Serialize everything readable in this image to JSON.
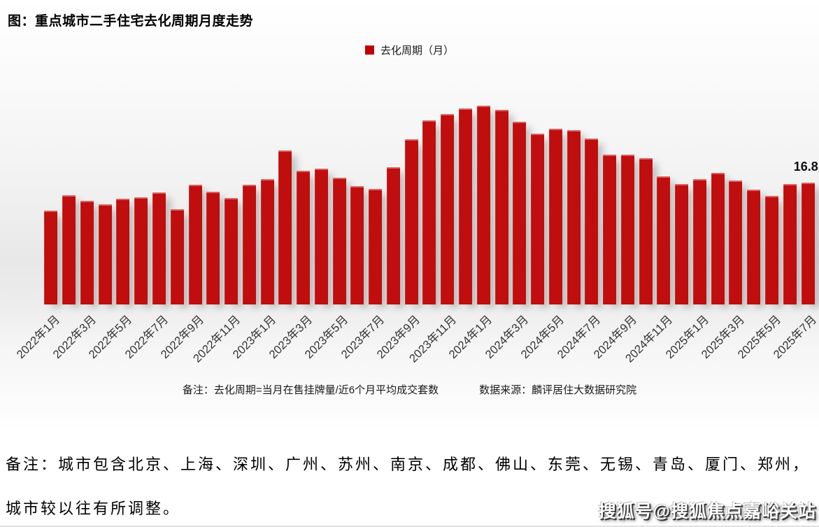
{
  "header": {
    "title": "图：重点城市二手住宅去化周期月度走势"
  },
  "legend": {
    "label": "去化周期（月）",
    "marker_color": "#c00000"
  },
  "chart_data": {
    "type": "bar",
    "title": "重点城市二手住宅去化周期月度走势",
    "xlabel": "",
    "ylabel": "去化周期（月）",
    "legend_position": "top-center",
    "grid": false,
    "axis_lines": false,
    "bar_color": "#c00d0d",
    "ylim": [
      0,
      36.6
    ],
    "tick_step": 2,
    "categories": [
      "2022年1月",
      "2022年2月",
      "2022年3月",
      "2022年4月",
      "2022年5月",
      "2022年6月",
      "2022年7月",
      "2022年8月",
      "2022年9月",
      "2022年10月",
      "2022年11月",
      "2022年12月",
      "2023年1月",
      "2023年2月",
      "2023年3月",
      "2023年4月",
      "2023年5月",
      "2023年6月",
      "2023年7月",
      "2023年8月",
      "2023年9月",
      "2023年10月",
      "2023年11月",
      "2023年12月",
      "2024年1月",
      "2024年2月",
      "2024年3月",
      "2024年4月",
      "2024年5月",
      "2024年6月",
      "2024年7月",
      "2024年8月",
      "2024年9月",
      "2024年10月",
      "2024年11月",
      "2024年12月",
      "2025年1月",
      "2025年2月",
      "2025年3月",
      "2025年4月",
      "2025年5月",
      "2025年6月",
      "2025年7月"
    ],
    "values": [
      12.9,
      15.0,
      14.3,
      13.8,
      14.5,
      14.7,
      15.4,
      13.1,
      16.5,
      15.5,
      14.6,
      16.5,
      17.2,
      21.2,
      18.4,
      18.7,
      17.4,
      16.3,
      15.9,
      18.9,
      22.7,
      25.3,
      26.2,
      27.0,
      27.4,
      26.8,
      25.1,
      23.5,
      24.2,
      24.0,
      22.8,
      20.6,
      20.6,
      20.1,
      17.6,
      16.6,
      17.2,
      18.1,
      17.0,
      15.8,
      14.9,
      16.6,
      16.8
    ],
    "annotation": {
      "text": "16.8",
      "index": 42
    }
  },
  "footnote": {
    "note": "备注：去化周期=当月在售挂牌量/近6个月平均成交套数",
    "source": "数据来源：麟评居住大数据研究院"
  },
  "bottom_note": {
    "line1": "备注：城市包含北京、上海、深圳、广州、苏州、南京、成都、佛山、东莞、无锡、青岛、厦门、郑州，",
    "line2": "城市较以往有所调整。"
  },
  "watermark": {
    "text": "搜狐号@搜狐焦点嘉峪关站"
  }
}
